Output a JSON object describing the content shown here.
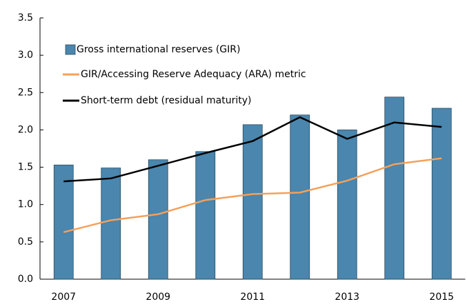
{
  "chart_data": {
    "type": "bar_line",
    "categories": [
      "2007",
      null,
      "2009",
      null,
      "2011",
      null,
      "2013",
      null,
      "2015"
    ],
    "series": [
      {
        "name": "Gross international reserves (GIR)",
        "type": "bar",
        "color": "#4a86ad",
        "values": [
          1.53,
          1.49,
          1.6,
          1.71,
          2.07,
          2.2,
          2.0,
          2.44,
          2.29
        ]
      },
      {
        "name": "GIR/Accessing Reserve Adequacy (ARA) metric",
        "type": "line",
        "color": "#f5a05a",
        "values": [
          0.63,
          0.79,
          0.87,
          1.06,
          1.14,
          1.16,
          1.32,
          1.54,
          1.62
        ]
      },
      {
        "name": "Short-term debt (residual maturity)",
        "type": "line",
        "color": "#000000",
        "values": [
          1.31,
          1.35,
          1.52,
          1.69,
          1.85,
          2.17,
          1.88,
          2.1,
          2.04
        ]
      }
    ],
    "ylim": [
      0,
      3.5
    ],
    "yticks": [
      {
        "value": 0,
        "label": "0.0"
      },
      0.5,
      {
        "value": 1,
        "label": "1.0"
      },
      1.5,
      {
        "value": 2,
        "label": "2.0"
      },
      2.5,
      {
        "value": 3,
        "label": "3.0"
      },
      3.5
    ],
    "legend": "upper left"
  }
}
